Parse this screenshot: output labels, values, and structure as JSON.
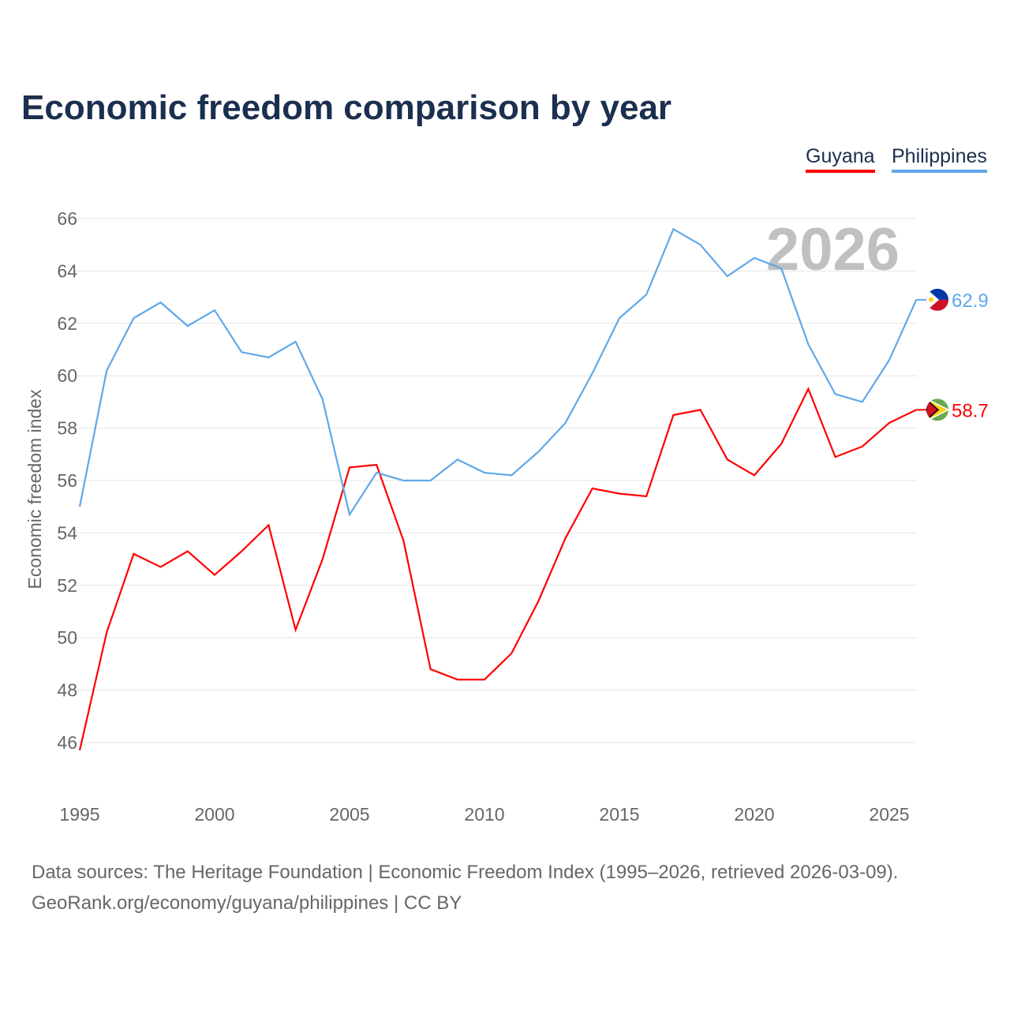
{
  "chart_data": {
    "type": "line",
    "title": "Economic freedom comparison by year",
    "xlabel": "",
    "ylabel": "Economic freedom index",
    "xlim": [
      1995,
      2026
    ],
    "ylim": [
      45,
      66.5
    ],
    "y_ticks": [
      46,
      48,
      50,
      52,
      54,
      56,
      58,
      60,
      62,
      64,
      66
    ],
    "x_ticks": [
      1995,
      2000,
      2005,
      2010,
      2015,
      2020,
      2025
    ],
    "grid": true,
    "legend_position": "top-right",
    "year_watermark": "2026",
    "x": [
      1995,
      1996,
      1997,
      1998,
      1999,
      2000,
      2001,
      2002,
      2003,
      2004,
      2005,
      2006,
      2007,
      2008,
      2009,
      2010,
      2011,
      2012,
      2013,
      2014,
      2015,
      2016,
      2017,
      2018,
      2019,
      2020,
      2021,
      2022,
      2023,
      2024,
      2025,
      2026
    ],
    "series": [
      {
        "name": "Guyana",
        "color": "#ff0000",
        "flag": "guyana-flag",
        "end_label": "58.7",
        "values": [
          45.7,
          50.2,
          53.2,
          52.7,
          53.3,
          52.4,
          53.3,
          54.3,
          50.3,
          53.0,
          56.5,
          56.6,
          53.7,
          48.8,
          48.4,
          48.4,
          49.4,
          51.4,
          53.8,
          55.7,
          55.5,
          55.4,
          58.5,
          58.7,
          56.8,
          56.2,
          57.4,
          59.5,
          56.9,
          57.3,
          58.2,
          58.7
        ]
      },
      {
        "name": "Philippines",
        "color": "#5ea8ea",
        "flag": "philippines-flag",
        "end_label": "62.9",
        "values": [
          55.0,
          60.2,
          62.2,
          62.8,
          61.9,
          62.5,
          60.9,
          60.7,
          61.3,
          59.1,
          54.7,
          56.3,
          56.0,
          56.0,
          56.8,
          56.3,
          56.2,
          57.1,
          58.2,
          60.1,
          62.2,
          63.1,
          65.6,
          65.0,
          63.8,
          64.5,
          64.1,
          61.2,
          59.3,
          59.0,
          60.6,
          62.9
        ]
      }
    ]
  },
  "footer": {
    "line1": "Data sources: The Heritage Foundation | Economic Freedom Index (1995–2026, retrieved 2026-03-09).",
    "line2": "GeoRank.org/economy/guyana/philippines | CC BY"
  }
}
